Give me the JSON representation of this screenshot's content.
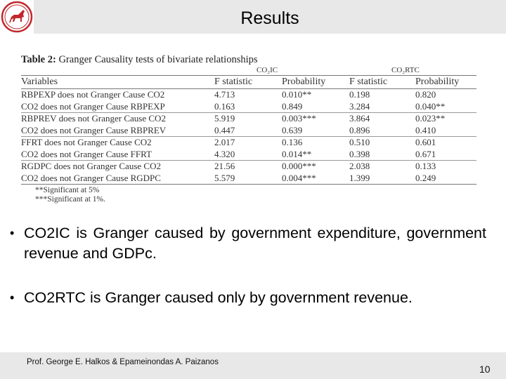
{
  "slide": {
    "title": "Results",
    "footer": {
      "authors": "Prof. George E. Halkos & Epameinondas A. Paizanos",
      "page_number": "10"
    }
  },
  "table": {
    "caption_label": "Table 2:",
    "caption_text": " Granger Causality tests of bivariate relationships",
    "group_headers": [
      "CO₂IC",
      "CO₂RTC"
    ],
    "columns": [
      "Variables",
      "F statistic",
      "Probability",
      "F statistic",
      "Probability"
    ],
    "rows": [
      [
        "RBPEXP does not Granger Cause CO2",
        "4.713",
        "0.010**",
        "0.198",
        "0.820"
      ],
      [
        "CO2 does not Granger Cause RBPEXP",
        "0.163",
        "0.849",
        "3.284",
        "0.040**"
      ],
      [
        "RBPREV does not Granger Cause CO2",
        "5.919",
        "0.003***",
        "3.864",
        "0.023**"
      ],
      [
        "CO2 does not Granger Cause RBPREV",
        "0.447",
        "0.639",
        "0.896",
        "0.410"
      ],
      [
        "FFRT does not Granger Cause CO2",
        "2.017",
        "0.136",
        "0.510",
        "0.601"
      ],
      [
        "CO2 does not Granger Cause FFRT",
        "4.320",
        "0.014**",
        "0.398",
        "0.671"
      ],
      [
        "RGDPC does not Granger Cause CO2",
        "21.56",
        "0.000***",
        "2.038",
        "0.133"
      ],
      [
        "CO2 does not Granger Cause RGDPC",
        "5.579",
        "0.004***",
        "1.399",
        "0.249"
      ]
    ],
    "notes": [
      "**Significant at 5%",
      "***Significant at 1%."
    ]
  },
  "bullets": [
    "CO2IC is Granger caused by government expenditure, government revenue and GDPc.",
    "CO2RTC is Granger caused only by government revenue."
  ],
  "colors": {
    "bar_gray": "#e8e8e8",
    "logo_red": "#c0282d"
  }
}
